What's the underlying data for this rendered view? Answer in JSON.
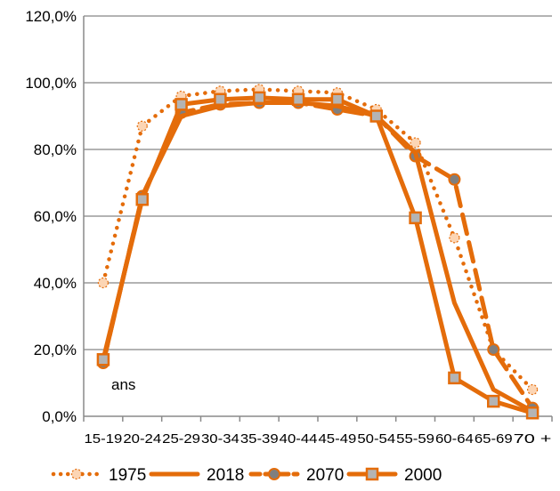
{
  "chart_data": {
    "type": "line",
    "categories": [
      "15-19",
      "20-24",
      "25-29",
      "30-34",
      "35-39",
      "40-44",
      "45-49",
      "50-54",
      "55-59",
      "60-64",
      "65-69",
      "70 +"
    ],
    "ylim": [
      0,
      120
    ],
    "yticks": [
      "0,0%",
      "20,0%",
      "40,0%",
      "60,0%",
      "80,0%",
      "100,0%",
      "120,0%"
    ],
    "grid": true,
    "legend": "bottom",
    "annotation": "ans",
    "series": [
      {
        "name": "1975",
        "style": "dotted",
        "marker": "diamond-light",
        "color": "#E46C0A",
        "values": [
          40,
          87,
          96,
          97.5,
          98,
          97.5,
          97,
          92,
          82,
          53.5,
          20,
          8
        ]
      },
      {
        "name": "2018",
        "style": "solid",
        "marker": "none",
        "color": "#E46C0A",
        "values": [
          16,
          66,
          90,
          93,
          94,
          94,
          93,
          90,
          79,
          34,
          8,
          1.5
        ]
      },
      {
        "name": "2070",
        "style": "dashed",
        "marker": "circle",
        "color": "#E46C0A",
        "values": [
          16,
          66,
          91,
          93.5,
          94,
          94,
          92,
          90,
          78,
          71,
          20,
          2.5
        ]
      },
      {
        "name": "2000",
        "style": "solid",
        "marker": "square",
        "color": "#E46C0A",
        "values": [
          17,
          65,
          93.5,
          95,
          95.5,
          95,
          95,
          90,
          59.5,
          11.5,
          4.5,
          1
        ]
      }
    ]
  }
}
